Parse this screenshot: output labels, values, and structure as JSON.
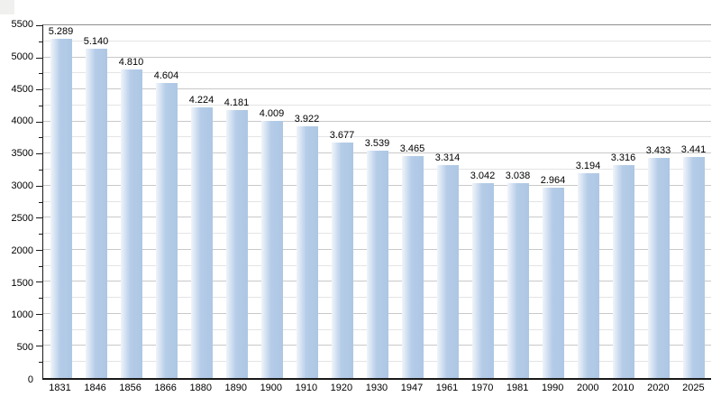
{
  "page": {
    "background": "#ffffff",
    "title": ""
  },
  "chart_data": {
    "type": "bar",
    "title": "",
    "xlabel": "",
    "ylabel": "",
    "categories": [
      "1831",
      "1846",
      "1856",
      "1866",
      "1880",
      "1890",
      "1900",
      "1910",
      "1920",
      "1930",
      "1947",
      "1961",
      "1970",
      "1981",
      "1990",
      "2000",
      "2010",
      "2020",
      "2025"
    ],
    "values": [
      5289,
      5140,
      4810,
      4604,
      4224,
      4181,
      4009,
      3922,
      3677,
      3539,
      3465,
      3314,
      3042,
      3038,
      2964,
      3194,
      3316,
      3433,
      3441
    ],
    "value_labels": [
      "5.289",
      "5.140",
      "4.810",
      "4.604",
      "4.224",
      "4.181",
      "4.009",
      "3.922",
      "3.677",
      "3.539",
      "3.465",
      "3.314",
      "3.042",
      "3.038",
      "2.964",
      "3.194",
      "3.316",
      "3.433",
      "3.441"
    ],
    "ylim": [
      0,
      5500
    ],
    "y_major_step": 500,
    "y_minor_step": 250,
    "y_tick_labels": [
      "0",
      "500",
      "1000",
      "1500",
      "2000",
      "2500",
      "3000",
      "3500",
      "4000",
      "4500",
      "5000",
      "5500"
    ],
    "grid": true,
    "legend": "none",
    "colors": {
      "bar": "#b5cce8",
      "bar_dark": "#adc7e4",
      "grid_major": "#c9c9c9",
      "grid_minor": "#e4e4e4",
      "axis": "#1a1a1a",
      "top_border": "#8f8f8f"
    }
  }
}
